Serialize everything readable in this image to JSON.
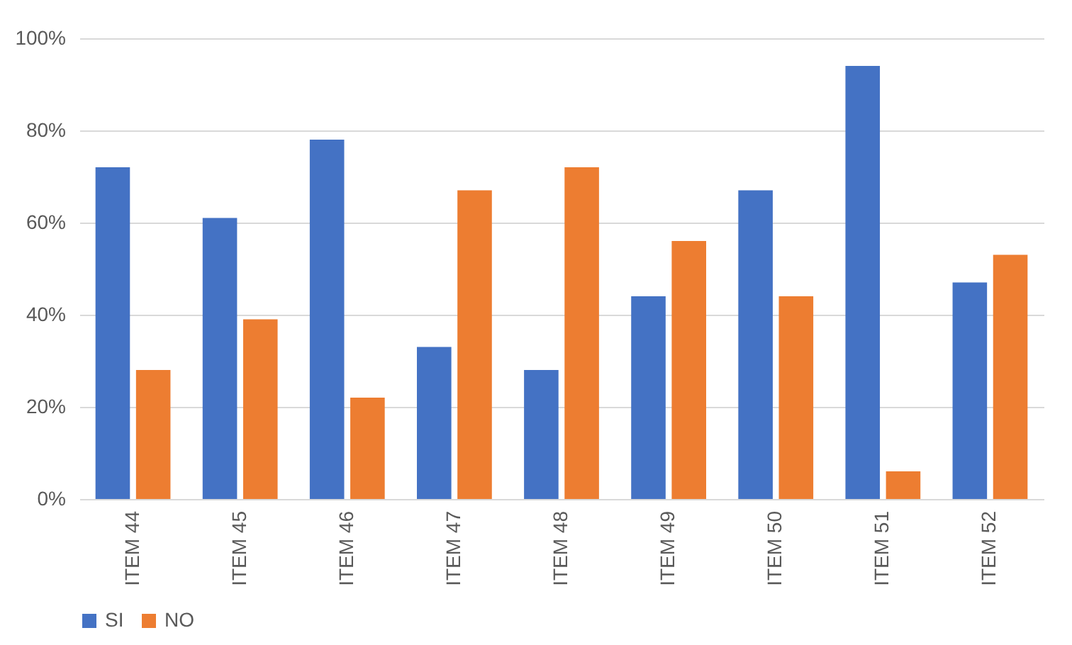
{
  "chart_data": {
    "type": "bar",
    "categories": [
      "ITEM 44",
      "ITEM 45",
      "ITEM 46",
      "ITEM 47",
      "ITEM 48",
      "ITEM 49",
      "ITEM 50",
      "ITEM 51",
      "ITEM 52"
    ],
    "series": [
      {
        "name": "SI",
        "color": "#4472c4",
        "values": [
          72,
          61,
          78,
          33,
          28,
          44,
          67,
          94,
          47
        ]
      },
      {
        "name": "NO",
        "color": "#ed7d31",
        "values": [
          28,
          39,
          22,
          67,
          72,
          56,
          44,
          6,
          53
        ]
      }
    ],
    "ylim": [
      0,
      100
    ],
    "yticks": [
      {
        "value": 0,
        "label": "0%"
      },
      {
        "value": 20,
        "label": "20%"
      },
      {
        "value": 40,
        "label": "40%"
      },
      {
        "value": 60,
        "label": "60%"
      },
      {
        "value": 80,
        "label": "80%"
      },
      {
        "value": 100,
        "label": "100%"
      }
    ],
    "grid": "y",
    "legend": "bottom"
  }
}
